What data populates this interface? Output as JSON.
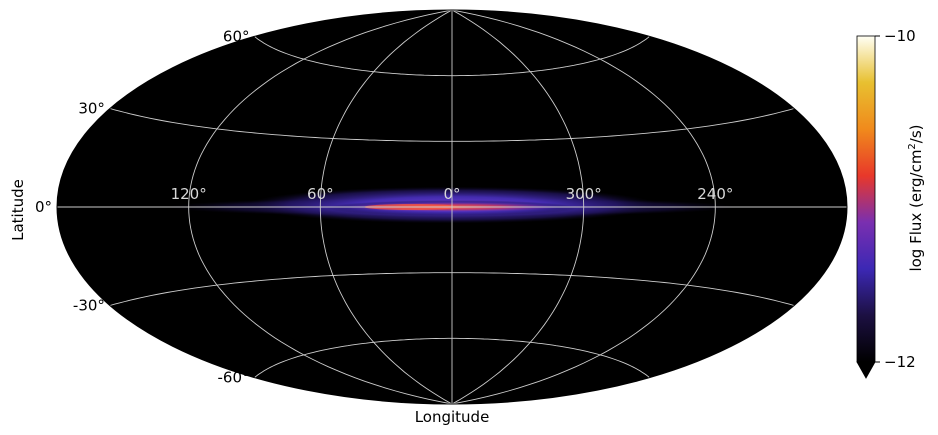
{
  "chart_data": {
    "type": "heatmap",
    "projection": "aitoff",
    "title": "",
    "xlabel": "Longitude",
    "ylabel": "Latitude",
    "longitude_tick_labels": [
      "120°",
      "60°",
      "0°",
      "300°",
      "240°"
    ],
    "longitude_ticks": [
      120,
      60,
      0,
      -60,
      -120
    ],
    "latitude_tick_labels": [
      "60°",
      "30°",
      "0°",
      "-30°",
      "-60°"
    ],
    "latitude_ticks": [
      60,
      30,
      0,
      -30,
      -60
    ],
    "grid": true,
    "background_color": "#000000",
    "grid_color": "#cccccc",
    "emission": {
      "description_value": "bright band along galactic plane",
      "peak_log_flux": -11.3,
      "typical_log_flux": -11.6,
      "longitude_extent": [
        -130,
        130
      ],
      "latitude_halfwidth": 8
    },
    "colorbar": {
      "label": "log Flux (erg/cm²/s)",
      "label_main": "log Flux (erg/cm",
      "label_sup": "2",
      "label_tail": "/s)",
      "min": -12,
      "max": -10,
      "tick_labels": [
        "−10",
        "−12"
      ],
      "colormap": [
        "#000000",
        "#1c1042",
        "#3c28b4",
        "#7a2fb0",
        "#e8382a",
        "#f08a1c",
        "#e8c030",
        "#fffff5"
      ],
      "extend": "min"
    }
  }
}
